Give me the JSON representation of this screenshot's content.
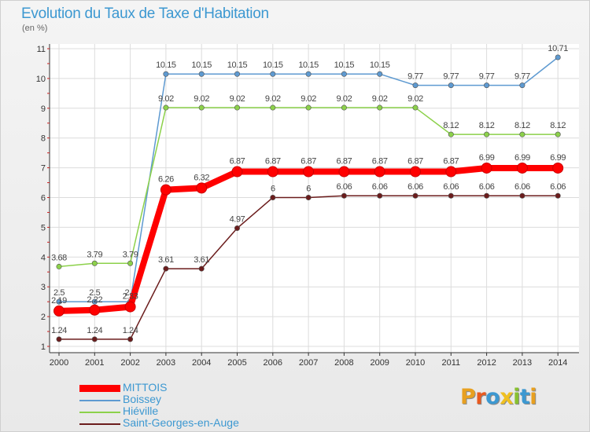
{
  "title": "Evolution du Taux de Taxe d'Habitation",
  "subtitle": "(en %)",
  "colors": {
    "title": "#3c98d1",
    "mittois": "#ff0000",
    "boissey": "#5e9ad1",
    "hieville": "#8cd14a",
    "saint_georges": "#6b1c1c"
  },
  "logo": {
    "letters": [
      "P",
      "r",
      "o",
      "x",
      "i",
      "t",
      "i"
    ],
    "colors": [
      "#e8a020",
      "#e85a20",
      "#3c98d1",
      "#f0c020",
      "#88c030",
      "#3c98d1",
      "#e8a020"
    ]
  },
  "chart_data": {
    "type": "line",
    "title": "Evolution du Taux de Taxe d'Habitation",
    "ylabel": "(en %)",
    "xlabel": "",
    "ylim": [
      1,
      11
    ],
    "yticks": [
      "1",
      "2",
      "3",
      "4",
      "5",
      "6",
      "7",
      "8",
      "9",
      "10",
      "11"
    ],
    "categories": [
      "2000",
      "2001",
      "2002",
      "2003",
      "2004",
      "2005",
      "2006",
      "2007",
      "2008",
      "2009",
      "2010",
      "2011",
      "2012",
      "2013",
      "2014"
    ],
    "grid": true,
    "legend": "bottom-left",
    "series": [
      {
        "name": "MITTOIS",
        "color": "#ff0000",
        "values": [
          2.19,
          2.22,
          2.33,
          6.26,
          6.32,
          6.87,
          6.87,
          6.87,
          6.87,
          6.87,
          6.87,
          6.87,
          6.99,
          6.99,
          6.99
        ],
        "labels": [
          "2.19",
          "2.22",
          "2.33",
          "6.26",
          "6.32",
          "6.87",
          "6.87",
          "6.87",
          "6.87",
          "6.87",
          "6.87",
          "6.87",
          "6.99",
          "6.99",
          "6.99"
        ]
      },
      {
        "name": "Boissey",
        "color": "#5e9ad1",
        "values": [
          2.5,
          2.5,
          2.5,
          10.15,
          10.15,
          10.15,
          10.15,
          10.15,
          10.15,
          10.15,
          9.77,
          9.77,
          9.77,
          9.77,
          10.71
        ],
        "labels": [
          "2.5",
          "2.5",
          "2.5",
          "10.15",
          "10.15",
          "10.15",
          "10.15",
          "10.15",
          "10.15",
          "10.15",
          "9.77",
          "9.77",
          "9.77",
          "9.77",
          "10.71"
        ]
      },
      {
        "name": "Hiéville",
        "color": "#8cd14a",
        "values": [
          3.68,
          3.79,
          3.79,
          9.02,
          9.02,
          9.02,
          9.02,
          9.02,
          9.02,
          9.02,
          9.02,
          8.12,
          8.12,
          8.12,
          8.12
        ],
        "labels": [
          "3.68",
          "3.79",
          "3.79",
          "9.02",
          "9.02",
          "9.02",
          "9.02",
          "9.02",
          "9.02",
          "9.02",
          "9.02",
          "8.12",
          "8.12",
          "8.12",
          "8.12"
        ]
      },
      {
        "name": "Saint-Georges-en-Auge",
        "color": "#6b1c1c",
        "values": [
          1.24,
          1.24,
          1.24,
          3.61,
          3.61,
          4.97,
          6,
          6,
          6.06,
          6.06,
          6.06,
          6.06,
          6.06,
          6.06,
          6.06
        ],
        "labels": [
          "1.24",
          "1.24",
          "1.24",
          "3.61",
          "3.61",
          "4.97",
          "6",
          "6",
          "6.06",
          "6.06",
          "6.06",
          "6.06",
          "6.06",
          "6.06",
          "6.06"
        ]
      }
    ]
  }
}
